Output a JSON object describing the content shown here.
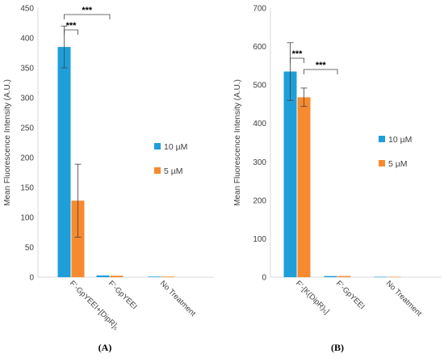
{
  "colors": {
    "s10": "#1E9FD9",
    "s5": "#F78A2F",
    "axis": "#D9D9D9",
    "text": "#404040"
  },
  "chart_data": [
    {
      "type": "bar",
      "panel_label": "(A)",
      "ylabel": "Mean Fluorescence Intensity (A.U.)",
      "ylim": [
        0,
        450
      ],
      "yticks": [
        "0",
        "50",
        "100",
        "150",
        "200",
        "250",
        "300",
        "350",
        "400",
        "450"
      ],
      "categories": [
        "F’-GpYEEI+[DipR]₅",
        "F’-GpYEEI",
        "No Treatment"
      ],
      "series": [
        {
          "name": "10 µM",
          "values": [
            385,
            3,
            1
          ],
          "errors": [
            35,
            0.5,
            0.3
          ]
        },
        {
          "name": "5 µM",
          "values": [
            128,
            2.5,
            1
          ],
          "errors": [
            61,
            0.5,
            0.3
          ]
        }
      ],
      "significance": [
        "***",
        "***"
      ],
      "legend": "right"
    },
    {
      "type": "bar",
      "panel_label": "(B)",
      "ylabel": "Mean Fluorescence Intensity (A.U.)",
      "ylim": [
        0,
        700
      ],
      "yticks": [
        "0",
        "100",
        "200",
        "300",
        "400",
        "500",
        "600",
        "700"
      ],
      "categories": [
        "F’-[K(DipR)₅]",
        "F’-GpYEEI",
        "No Treatment"
      ],
      "series": [
        {
          "name": "10 µM",
          "values": [
            535,
            3,
            1
          ],
          "errors": [
            75,
            0.5,
            0.3
          ]
        },
        {
          "name": "5 µM",
          "values": [
            468,
            3,
            1
          ],
          "errors": [
            24,
            0.5,
            0.3
          ]
        }
      ],
      "significance": [
        "***",
        "***"
      ],
      "legend": "right"
    }
  ]
}
